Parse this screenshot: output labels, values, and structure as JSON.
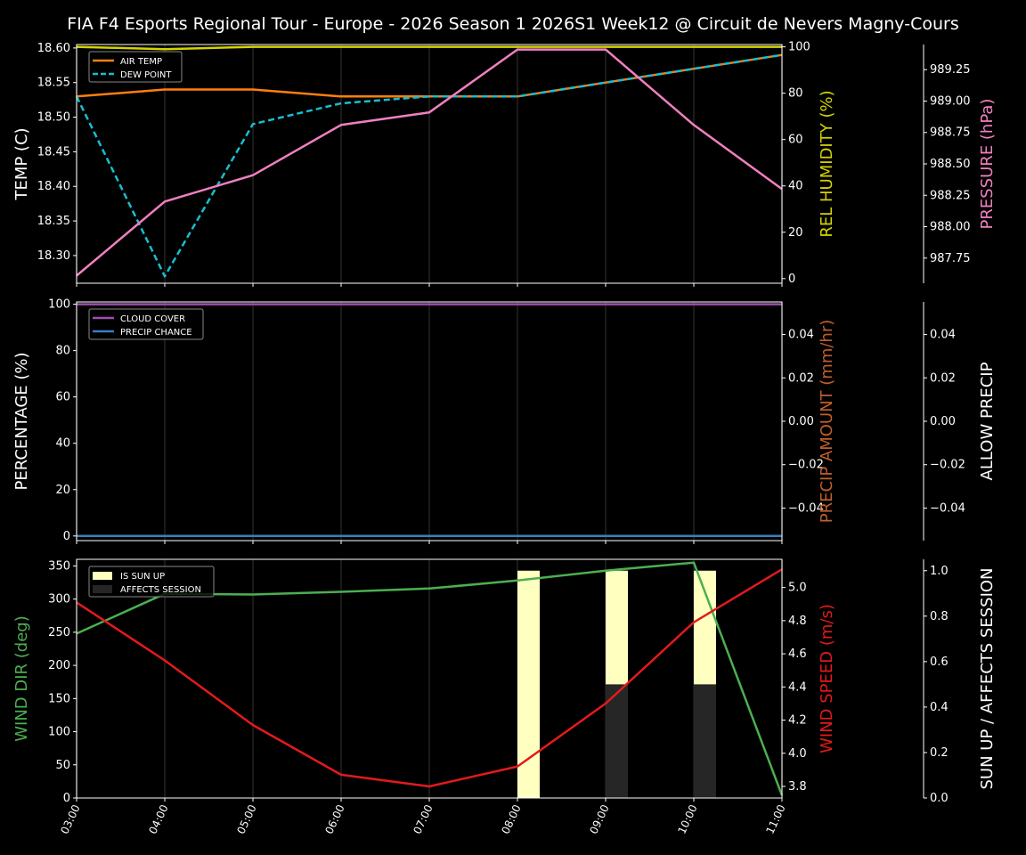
{
  "title": "FIA F4 Esports Regional Tour - Europe - 2026 Season 1 2026S1 Week12 @ Circuit de Nevers Magny-Cours",
  "chart_data": [
    {
      "type": "line",
      "panel": "temperature-humidity-pressure",
      "x": [
        "03:00",
        "04:00",
        "05:00",
        "06:00",
        "07:00",
        "08:00",
        "09:00",
        "10:00",
        "11:00"
      ],
      "ylabel": "TEMP (C)",
      "ylim": [
        18.26,
        18.605
      ],
      "yticks": [
        "18.30",
        "18.35",
        "18.40",
        "18.45",
        "18.50",
        "18.55",
        "18.60"
      ],
      "y2label": "REL HUMIDITY (%)",
      "y2lim": [
        -2,
        101
      ],
      "y2ticks": [
        "0",
        "20",
        "40",
        "60",
        "80",
        "100"
      ],
      "y3label": "PRESSURE (hPa)",
      "y3lim": [
        987.55,
        989.45
      ],
      "y3ticks": [
        "987.75",
        "988.00",
        "988.25",
        "988.50",
        "988.75",
        "989.00",
        "989.25"
      ],
      "legend": [
        "AIR TEMP",
        "DEW POINT"
      ],
      "series": [
        {
          "name": "AIR TEMP",
          "axis": "left",
          "color": "#ff7f0e",
          "style": "solid",
          "values": [
            18.53,
            18.54,
            18.54,
            18.53,
            18.53,
            18.53,
            18.55,
            18.57,
            18.59
          ]
        },
        {
          "name": "DEW POINT",
          "axis": "left",
          "color": "#17becf",
          "style": "dashed",
          "values": [
            18.53,
            18.27,
            18.49,
            18.52,
            18.53,
            18.53,
            18.55,
            18.57,
            18.59
          ]
        },
        {
          "name": "REL HUMIDITY",
          "axis": "right",
          "color": "#d4d400",
          "style": "solid",
          "values": [
            100,
            99,
            100,
            100,
            100,
            100,
            100,
            100,
            100
          ]
        },
        {
          "name": "PRESSURE",
          "axis": "far-right",
          "color": "#f080c0",
          "style": "solid",
          "values": [
            987.61,
            988.2,
            988.41,
            988.81,
            988.91,
            989.41,
            989.41,
            988.81,
            988.3
          ]
        }
      ],
      "grid": "vertical"
    },
    {
      "type": "line",
      "panel": "cloud-precip",
      "x": [
        "03:00",
        "04:00",
        "05:00",
        "06:00",
        "07:00",
        "08:00",
        "09:00",
        "10:00",
        "11:00"
      ],
      "ylabel": "PERCENTAGE (%)",
      "ylim": [
        -2,
        101
      ],
      "yticks": [
        "0",
        "20",
        "40",
        "60",
        "80",
        "100"
      ],
      "y2label": "PRECIP AMOUNT (mm/hr)",
      "y2lim": [
        -0.055,
        0.055
      ],
      "y2ticks": [
        "−0.04",
        "−0.02",
        "0.00",
        "0.02",
        "0.04"
      ],
      "y3label": "ALLOW PRECIP",
      "y3lim": [
        -0.055,
        0.055
      ],
      "y3ticks": [
        "−0.04",
        "−0.02",
        "0.00",
        "0.02",
        "0.04"
      ],
      "legend": [
        "CLOUD COVER",
        "PRECIP CHANCE"
      ],
      "series": [
        {
          "name": "CLOUD COVER",
          "axis": "left",
          "color": "#a04fb0",
          "values": [
            100,
            100,
            100,
            100,
            100,
            100,
            100,
            100,
            100
          ]
        },
        {
          "name": "PRECIP CHANCE",
          "axis": "left",
          "color": "#3a7fc0",
          "values": [
            0,
            0,
            0,
            0,
            0,
            0,
            0,
            0,
            0
          ]
        }
      ],
      "grid": "vertical"
    },
    {
      "type": "line",
      "panel": "wind-sun",
      "x": [
        "03:00",
        "04:00",
        "05:00",
        "06:00",
        "07:00",
        "08:00",
        "09:00",
        "10:00",
        "11:00"
      ],
      "ylabel": "WIND DIR (deg)",
      "ylim": [
        0,
        360
      ],
      "yticks": [
        "0",
        "50",
        "100",
        "150",
        "200",
        "250",
        "300",
        "350"
      ],
      "y2label": "WIND SPEED (m/s)",
      "y2lim": [
        3.73,
        5.17
      ],
      "y2ticks": [
        "3.8",
        "4.0",
        "4.2",
        "4.4",
        "4.6",
        "4.8",
        "5.0"
      ],
      "y3label": "SUN UP / AFFECTS SESSION",
      "y3lim": [
        0,
        1.05
      ],
      "y3ticks": [
        "0.0",
        "0.2",
        "0.4",
        "0.6",
        "0.8",
        "1.0"
      ],
      "legend": [
        "IS SUN UP",
        "AFFECTS SESSION"
      ],
      "series": [
        {
          "name": "WIND DIR",
          "axis": "left",
          "color": "#4caf50",
          "values": [
            248,
            308,
            307,
            311,
            316,
            328,
            343,
            355,
            4
          ]
        },
        {
          "name": "WIND SPEED",
          "axis": "right",
          "color": "#e31a1c",
          "values": [
            4.91,
            4.56,
            4.17,
            3.87,
            3.8,
            3.92,
            4.3,
            4.79,
            5.11
          ]
        },
        {
          "name": "IS SUN UP",
          "axis": "far-right",
          "type": "bar",
          "color": "#ffffc0",
          "values": [
            0,
            0,
            0,
            0,
            0,
            1,
            1,
            1,
            0
          ]
        },
        {
          "name": "AFFECTS SESSION",
          "axis": "far-right",
          "type": "bar",
          "color": "#262626",
          "values": [
            0,
            0,
            0,
            0,
            0,
            0,
            0.5,
            0.5,
            0
          ]
        }
      ],
      "grid": "vertical"
    }
  ]
}
